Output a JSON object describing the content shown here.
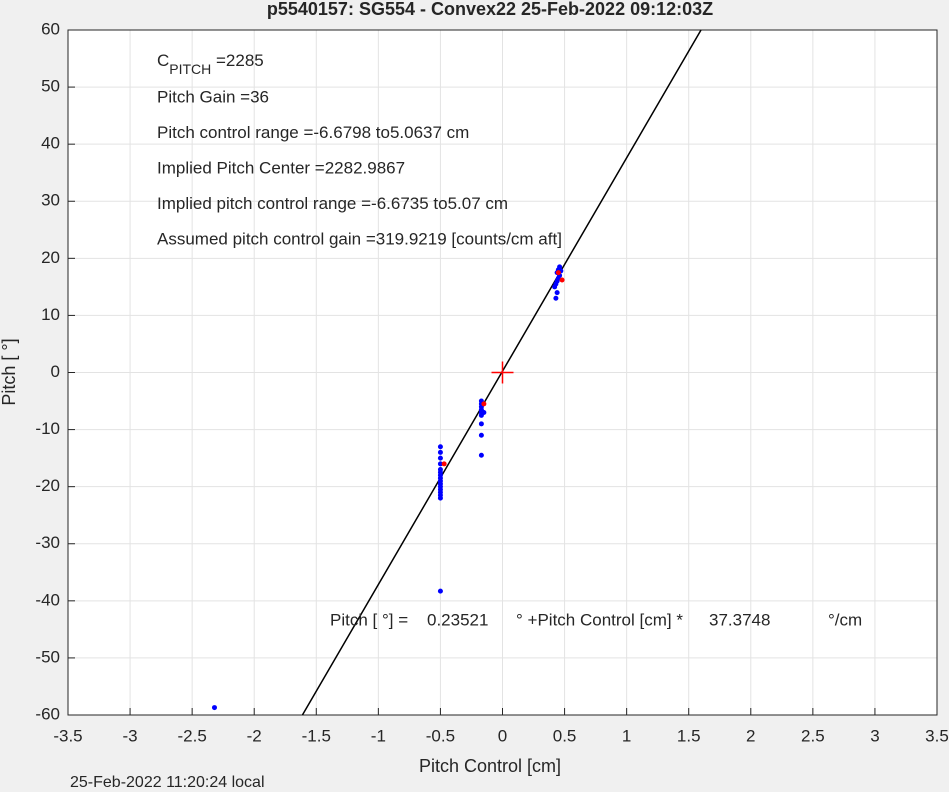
{
  "chart_data": {
    "type": "scatter",
    "title": "p5540157: SG554 - Convex22 25-Feb-2022 09:12:03Z",
    "x_label": "Pitch Control [cm]",
    "y_label": "Pitch [  °]",
    "footer": "25-Feb-2022 11:20:24 local",
    "xlim": [
      -3.5,
      3.5
    ],
    "xticks": [
      -3.5,
      -3,
      -2.5,
      -2,
      -1.5,
      -1,
      -0.5,
      0,
      0.5,
      1,
      1.5,
      2,
      2.5,
      3,
      3.5
    ],
    "ylim": [
      -60,
      60
    ],
    "yticks": [
      -60,
      -50,
      -40,
      -30,
      -20,
      -10,
      0,
      10,
      20,
      30,
      40,
      50,
      60
    ],
    "grid": true,
    "c_pitch": {
      "base": "C",
      "sub": "PITCH",
      "rest": " =2285"
    },
    "annotations": [
      "Pitch Gain =36",
      "Pitch control range =-6.6798 to5.0637 cm",
      "Implied Pitch Center =2282.9867",
      "Implied pitch control range =-6.6735 to5.07 cm",
      "Assumed pitch control gain =319.9219 [counts/cm aft]"
    ],
    "fit": {
      "intercept": 0.23521,
      "slope": 37.3748,
      "color": "#000000",
      "text_parts": [
        "Pitch [  °] =",
        "  ° +Pitch Control [cm] *",
        "  °/cm"
      ]
    },
    "center": {
      "x": 0,
      "y": 0,
      "color": "#ff0000"
    },
    "series": [
      {
        "color": "#0000ff",
        "x": [
          -2.32,
          -0.5,
          -0.5,
          -0.5,
          -0.5,
          -0.5,
          -0.5,
          -0.5,
          -0.5,
          -0.5,
          -0.5,
          -0.5,
          -0.5,
          -0.5,
          -0.5,
          -0.5,
          -0.5,
          -0.17,
          -0.17,
          -0.17,
          -0.17,
          -0.17,
          -0.17,
          -0.17,
          -0.17,
          -0.17,
          -0.15,
          0.43,
          0.44,
          0.42,
          0.43,
          0.44,
          0.45,
          0.46,
          0.44,
          0.45,
          0.46,
          0.47
        ],
        "values": [
          -58.7,
          -38.3,
          -13,
          -14,
          -15,
          -16,
          -17,
          -17.5,
          -18,
          -18.5,
          -19,
          -19.5,
          -20,
          -20.5,
          -21,
          -21.5,
          -22,
          -5,
          -5.5,
          -6,
          -6.5,
          -7,
          -7.5,
          -9,
          -11,
          -14.5,
          -7,
          13,
          14,
          15,
          15.5,
          16,
          16.5,
          17,
          17.5,
          18,
          18.5,
          17.8
        ]
      },
      {
        "color": "#ff0000",
        "x": [
          -0.47,
          -0.15,
          0.48,
          0.45
        ],
        "values": [
          -16,
          -5.5,
          16.2,
          17.5
        ]
      }
    ]
  }
}
